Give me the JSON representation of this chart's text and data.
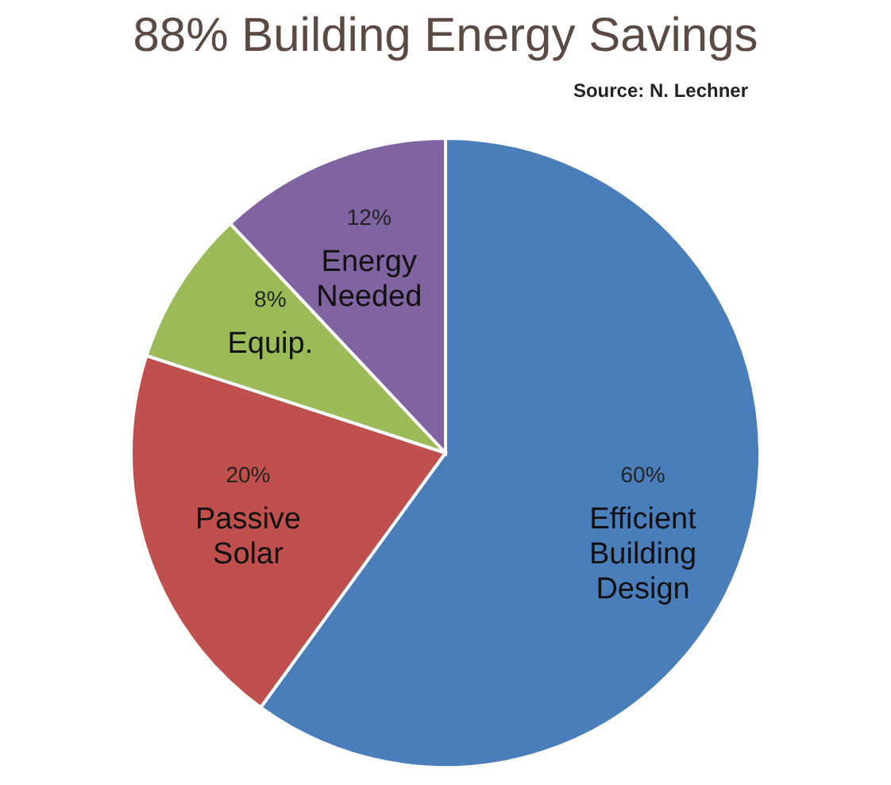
{
  "chart_data": {
    "type": "pie",
    "title": "88% Building Energy Savings",
    "annotations": [
      "Source: N. Lechner"
    ],
    "categories": [
      "Efficient Building Design",
      "Passive Solar",
      "Equip.",
      "Energy Needed"
    ],
    "values": [
      60,
      20,
      8,
      12
    ],
    "value_labels": [
      "60%",
      "20%",
      "8%",
      "12%"
    ],
    "colors": [
      "#4a7ebb",
      "#c0504d",
      "#9bbb59",
      "#8064a2"
    ],
    "legend": false
  }
}
